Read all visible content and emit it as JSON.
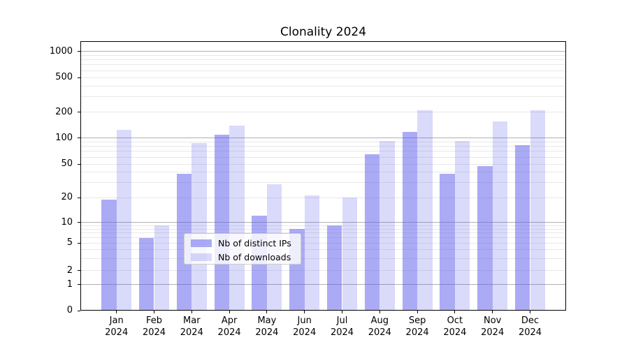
{
  "title": "Clonality 2024",
  "chart_data": {
    "type": "bar",
    "title": "Clonality 2024",
    "categories": [
      "Jan 2024",
      "Feb 2024",
      "Mar 2024",
      "Apr 2024",
      "May 2024",
      "Jun 2024",
      "Jul 2024",
      "Aug 2024",
      "Sep 2024",
      "Oct 2024",
      "Nov 2024",
      "Dec 2024"
    ],
    "series": [
      {
        "name": "Nb of distinct IPs",
        "color": "rgba(88,88,235,0.5)",
        "values": [
          19,
          6,
          38,
          110,
          12,
          8,
          9,
          65,
          117,
          38,
          47,
          83
        ]
      },
      {
        "name": "Nb of downloads",
        "color": "rgba(88,88,235,0.22)",
        "values": [
          125,
          9,
          87,
          140,
          29,
          21,
          20,
          93,
          210,
          92,
          155,
          210
        ]
      }
    ],
    "yticks": [
      0,
      1,
      2,
      5,
      10,
      20,
      50,
      100,
      200,
      500,
      1000
    ],
    "yscale": "symlog",
    "ylim": [
      0,
      1300
    ],
    "grid": "both",
    "legend_position": "lower center"
  },
  "legend": {
    "items": [
      {
        "label": "Nb of distinct IPs"
      },
      {
        "label": "Nb of downloads"
      }
    ]
  },
  "colors": {
    "bar_ips": "rgba(88,88,235,0.5)",
    "bar_downloads": "rgba(88,88,235,0.22)",
    "grid_major": "#b0b0b0",
    "grid_minor": "#e8e8e8",
    "spine": "#000000",
    "background": "#ffffff"
  }
}
